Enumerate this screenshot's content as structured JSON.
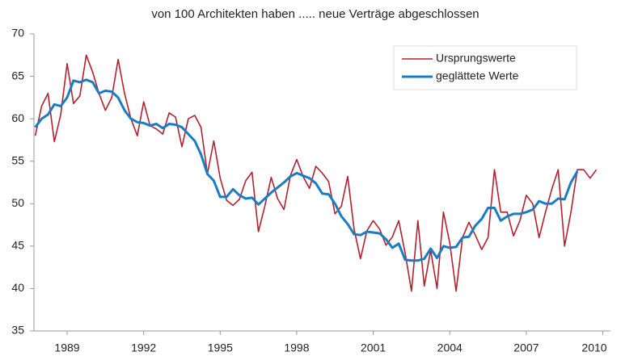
{
  "chart_data": {
    "type": "line",
    "title": "von 100 Architekten haben ..... neue Verträge abgeschlossen",
    "x": [
      1987.75,
      1988,
      1988.25,
      1988.5,
      1988.75,
      1989,
      1989.25,
      1989.5,
      1989.75,
      1990,
      1990.25,
      1990.5,
      1990.75,
      1991,
      1991.25,
      1991.5,
      1991.75,
      1992,
      1992.25,
      1992.5,
      1992.75,
      1993,
      1993.25,
      1993.5,
      1993.75,
      1994,
      1994.25,
      1994.5,
      1994.75,
      1995,
      1995.25,
      1995.5,
      1995.75,
      1996,
      1996.25,
      1996.5,
      1996.75,
      1997,
      1997.25,
      1997.5,
      1997.75,
      1998,
      1998.25,
      1998.5,
      1998.75,
      1999,
      1999.25,
      1999.5,
      1999.75,
      2000,
      2000.25,
      2000.5,
      2000.75,
      2001,
      2001.25,
      2001.5,
      2001.75,
      2002,
      2002.25,
      2002.5,
      2002.75,
      2003,
      2003.25,
      2003.5,
      2003.75,
      2004,
      2004.25,
      2004.5,
      2004.75,
      2005,
      2005.25,
      2005.5,
      2005.75,
      2006,
      2006.25,
      2006.5,
      2006.75,
      2007,
      2007.25,
      2007.5,
      2007.75,
      2008,
      2008.25,
      2008.5,
      2008.75,
      2009,
      2009.25,
      2009.5,
      2009.75
    ],
    "series": [
      {
        "name": "Ursprungswerte",
        "color": "#b5202e",
        "width": 1.6,
        "values": [
          58,
          61.5,
          63,
          57.3,
          60.5,
          66.5,
          61.8,
          62.7,
          67.5,
          65.5,
          63,
          61,
          62.5,
          67,
          63,
          60,
          58,
          62,
          59.2,
          58.8,
          58.2,
          60.7,
          60.2,
          56.7,
          60,
          60.4,
          59,
          53.5,
          57.4,
          53,
          50.4,
          49.8,
          50.5,
          52.7,
          53.7,
          46.7,
          49.7,
          53.1,
          50.6,
          49.3,
          53.3,
          55.2,
          53.2,
          51.8,
          54.4,
          53.6,
          52.6,
          48.8,
          49.7,
          53.2,
          47,
          43.5,
          46.8,
          48,
          47,
          45.1,
          46.1,
          48,
          44.2,
          39.7,
          48,
          40.3,
          44.5,
          40,
          49,
          45.4,
          39.7,
          46,
          47.8,
          46.3,
          44.6,
          46,
          54,
          49,
          49,
          46.2,
          48,
          51,
          50,
          46,
          49,
          51.7,
          54,
          45,
          49,
          54,
          54,
          53,
          54
        ]
      },
      {
        "name": "geglättete Werte",
        "color": "#1a7dc4",
        "width": 3,
        "values": [
          59,
          60,
          60.5,
          61.7,
          61.5,
          62.5,
          64.5,
          64.3,
          64.6,
          64.3,
          63,
          63.3,
          63.2,
          62.5,
          61,
          60,
          59.6,
          59.5,
          59.2,
          59.4,
          58.9,
          59.4,
          59.3,
          59,
          58.2,
          57.4,
          55.8,
          53.5,
          52.7,
          50.8,
          50.8,
          51.7,
          51,
          50.6,
          50.7,
          49.9,
          50.6,
          51.3,
          51.9,
          52.5,
          53.2,
          53.6,
          53.3,
          53,
          52.4,
          51.2,
          51.1,
          50,
          48.5,
          47.6,
          46.4,
          46.3,
          46.7,
          46.6,
          46.5,
          45.8,
          44.8,
          45.3,
          43.4,
          43.3,
          43.3,
          43.5,
          44.7,
          43.6,
          45,
          44.8,
          44.9,
          46,
          46.1,
          47.4,
          48.2,
          49.5,
          49.5,
          48,
          48.5,
          48.8,
          48.8,
          49,
          49.3,
          50.3,
          50,
          50,
          50.6,
          50.5,
          52.5,
          53.8,
          null,
          null,
          null
        ]
      }
    ],
    "xlim": [
      1987.7,
      2010.3
    ],
    "xticks": [
      1989,
      1992,
      1995,
      1998,
      2001,
      2004,
      2007,
      2010
    ],
    "ylim": [
      35,
      70
    ],
    "yticks": [
      35,
      40,
      45,
      50,
      55,
      60,
      65,
      70
    ],
    "legend": "top-right"
  }
}
